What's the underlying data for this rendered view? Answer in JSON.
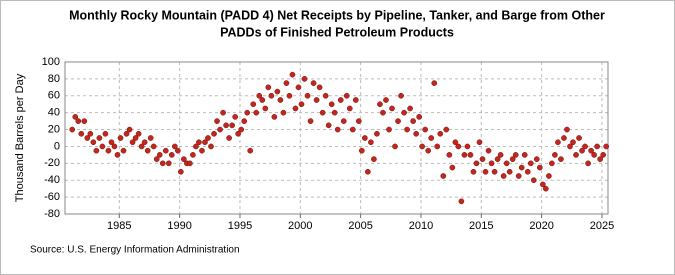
{
  "chart_data": {
    "type": "scatter",
    "title": [
      "Monthly Rocky Mountain (PADD 4) Net Receipts by Pipeline, Tanker, and Barge from Other",
      "PADDs of Finished Petroleum Products"
    ],
    "y_label": "Thousand Barrels per Day",
    "source": "Source: U.S. Energy Information Administration",
    "xlim": [
      1980.5,
      2025.5
    ],
    "xticks": [
      1985,
      1990,
      1995,
      2000,
      2005,
      2010,
      2015,
      2020,
      2025
    ],
    "ylim": [
      -80,
      100
    ],
    "yticks": [
      -80,
      -60,
      -40,
      -20,
      0,
      20,
      40,
      60,
      80,
      100
    ],
    "grid": true,
    "series": [
      {
        "color": "#c0281e",
        "x": [
          1981.1,
          1981.35,
          1981.6,
          1981.85,
          1982.1,
          1982.35,
          1982.6,
          1982.85,
          1983.1,
          1983.35,
          1983.6,
          1983.85,
          1984.1,
          1984.35,
          1984.6,
          1984.85,
          1985.1,
          1985.35,
          1985.6,
          1985.85,
          1986.1,
          1986.35,
          1986.6,
          1986.85,
          1987.1,
          1987.35,
          1987.6,
          1987.85,
          1988.1,
          1988.35,
          1988.6,
          1988.85,
          1989.1,
          1989.35,
          1989.6,
          1989.85,
          1990.1,
          1990.35,
          1990.6,
          1990.85,
          1991.1,
          1991.35,
          1991.6,
          1991.85,
          1992.1,
          1992.35,
          1992.6,
          1992.85,
          1993.1,
          1993.35,
          1993.6,
          1993.85,
          1994.1,
          1994.35,
          1994.6,
          1994.85,
          1995.1,
          1995.35,
          1995.6,
          1995.85,
          1996.1,
          1996.35,
          1996.6,
          1996.85,
          1997.1,
          1997.35,
          1997.6,
          1997.85,
          1998.1,
          1998.35,
          1998.6,
          1998.85,
          1999.1,
          1999.35,
          1999.6,
          1999.85,
          2000.1,
          2000.35,
          2000.6,
          2000.85,
          2001.1,
          2001.35,
          2001.6,
          2001.85,
          2002.1,
          2002.35,
          2002.6,
          2002.85,
          2003.1,
          2003.35,
          2003.6,
          2003.85,
          2004.1,
          2004.35,
          2004.6,
          2004.85,
          2005.1,
          2005.35,
          2005.6,
          2005.85,
          2006.1,
          2006.35,
          2006.6,
          2006.85,
          2007.1,
          2007.35,
          2007.6,
          2007.85,
          2008.1,
          2008.35,
          2008.6,
          2008.85,
          2009.1,
          2009.35,
          2009.6,
          2009.85,
          2010.1,
          2010.35,
          2010.6,
          2010.85,
          2011.1,
          2011.35,
          2011.6,
          2011.85,
          2012.1,
          2012.35,
          2012.6,
          2012.85,
          2013.1,
          2013.35,
          2013.6,
          2013.85,
          2014.1,
          2014.35,
          2014.6,
          2014.85,
          2015.1,
          2015.35,
          2015.6,
          2015.85,
          2016.1,
          2016.35,
          2016.6,
          2016.85,
          2017.1,
          2017.35,
          2017.6,
          2017.85,
          2018.1,
          2018.35,
          2018.6,
          2018.85,
          2019.1,
          2019.35,
          2019.6,
          2019.85,
          2020.1,
          2020.35,
          2020.6,
          2020.85,
          2021.1,
          2021.35,
          2021.6,
          2021.85,
          2022.1,
          2022.35,
          2022.6,
          2022.85,
          2023.1,
          2023.35,
          2023.6,
          2023.85,
          2024.1,
          2024.35,
          2024.6,
          2024.85,
          2025.1,
          2025.35
        ],
        "values": [
          20,
          35,
          30,
          15,
          30,
          10,
          15,
          5,
          -5,
          10,
          0,
          15,
          -5,
          5,
          0,
          -10,
          10,
          -5,
          15,
          20,
          5,
          10,
          15,
          0,
          5,
          -5,
          10,
          0,
          -15,
          -10,
          -20,
          -5,
          -20,
          -10,
          0,
          -5,
          -30,
          -15,
          -20,
          -20,
          -10,
          0,
          5,
          -5,
          5,
          10,
          0,
          15,
          30,
          20,
          40,
          25,
          10,
          25,
          35,
          15,
          20,
          30,
          40,
          -5,
          50,
          40,
          60,
          55,
          45,
          70,
          60,
          35,
          65,
          55,
          40,
          75,
          60,
          85,
          45,
          70,
          50,
          80,
          60,
          30,
          75,
          55,
          70,
          40,
          60,
          25,
          50,
          40,
          20,
          55,
          30,
          60,
          45,
          20,
          55,
          30,
          -5,
          10,
          -30,
          5,
          -15,
          15,
          50,
          40,
          55,
          20,
          45,
          0,
          30,
          60,
          40,
          20,
          45,
          30,
          15,
          35,
          0,
          20,
          -5,
          10,
          75,
          0,
          15,
          -35,
          20,
          -10,
          -25,
          5,
          0,
          -65,
          -10,
          0,
          -10,
          -30,
          -20,
          5,
          -15,
          -30,
          -5,
          -20,
          -30,
          -15,
          -10,
          -35,
          -20,
          -30,
          -15,
          -10,
          -35,
          -25,
          -10,
          -30,
          -20,
          -40,
          -15,
          -25,
          -45,
          -50,
          -35,
          -20,
          -10,
          5,
          -15,
          10,
          20,
          0,
          5,
          -10,
          10,
          -5,
          0,
          -20,
          -5,
          -10,
          0,
          -15,
          -10,
          0
        ]
      }
    ]
  }
}
